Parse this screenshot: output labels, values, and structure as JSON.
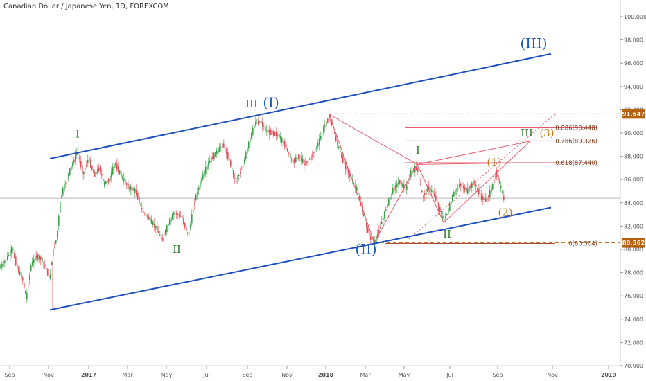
{
  "header": {
    "title": "Canadian Dollar / Japanese Yen, 1D, FOREXCOM"
  },
  "chart_data": {
    "type": "candlestick",
    "x_tick_labels": [
      "Sep",
      "Nov",
      "2017",
      "Mar",
      "May",
      "Jul",
      "Sep",
      "Nov",
      "2018",
      "Mar",
      "May",
      "Jul",
      "Sep",
      "Nov",
      "2019"
    ],
    "y_tick_labels": [
      "70.000",
      "72.000",
      "74.000",
      "76.000",
      "78.000",
      "80.000",
      "82.000",
      "84.000",
      "86.000",
      "88.000",
      "90.000",
      "92.000",
      "94.000",
      "96.000",
      "98.000",
      "100.000"
    ],
    "ylim": [
      70,
      101
    ],
    "xlim": [
      0,
      895
    ],
    "price_path": [
      [
        0,
        78.4
      ],
      [
        10,
        79.2
      ],
      [
        18,
        80.1
      ],
      [
        25,
        78.4
      ],
      [
        33,
        77.4
      ],
      [
        38,
        75.8
      ],
      [
        45,
        78.6
      ],
      [
        52,
        79.4
      ],
      [
        60,
        79.2
      ],
      [
        66,
        78.4
      ],
      [
        72,
        77.4
      ],
      [
        76,
        79.6
      ],
      [
        82,
        81.0
      ],
      [
        88,
        84.5
      ],
      [
        96,
        86.0
      ],
      [
        104,
        87.2
      ],
      [
        112,
        88.4
      ],
      [
        120,
        86.5
      ],
      [
        128,
        87.8
      ],
      [
        136,
        86.4
      ],
      [
        144,
        87.0
      ],
      [
        150,
        85.6
      ],
      [
        158,
        86.0
      ],
      [
        166,
        87.4
      ],
      [
        176,
        86.2
      ],
      [
        186,
        85.3
      ],
      [
        196,
        85.0
      ],
      [
        206,
        83.3
      ],
      [
        216,
        82.6
      ],
      [
        226,
        81.8
      ],
      [
        234,
        80.8
      ],
      [
        244,
        82.3
      ],
      [
        252,
        83.2
      ],
      [
        262,
        82.8
      ],
      [
        272,
        81.2
      ],
      [
        282,
        84.4
      ],
      [
        292,
        86.2
      ],
      [
        302,
        87.5
      ],
      [
        312,
        88.3
      ],
      [
        322,
        89.0
      ],
      [
        332,
        87.5
      ],
      [
        340,
        85.8
      ],
      [
        350,
        87.0
      ],
      [
        360,
        89.3
      ],
      [
        368,
        90.8
      ],
      [
        376,
        91.0
      ],
      [
        384,
        90.2
      ],
      [
        394,
        90.0
      ],
      [
        402,
        89.8
      ],
      [
        412,
        88.9
      ],
      [
        422,
        87.5
      ],
      [
        432,
        88.0
      ],
      [
        440,
        87.3
      ],
      [
        450,
        88.0
      ],
      [
        460,
        89.2
      ],
      [
        468,
        90.5
      ],
      [
        476,
        91.5
      ],
      [
        486,
        89.2
      ],
      [
        496,
        87.5
      ],
      [
        506,
        86.2
      ],
      [
        516,
        85.0
      ],
      [
        526,
        82.6
      ],
      [
        534,
        81.0
      ],
      [
        541,
        80.6
      ],
      [
        548,
        81.8
      ],
      [
        556,
        83.3
      ],
      [
        566,
        85.0
      ],
      [
        576,
        85.8
      ],
      [
        586,
        85.2
      ],
      [
        594,
        86.8
      ],
      [
        602,
        87.0
      ],
      [
        610,
        84.5
      ],
      [
        618,
        85.3
      ],
      [
        626,
        84.8
      ],
      [
        634,
        83.5
      ],
      [
        640,
        82.5
      ],
      [
        646,
        83.2
      ],
      [
        654,
        84.7
      ],
      [
        664,
        85.6
      ],
      [
        674,
        85.0
      ],
      [
        684,
        85.8
      ],
      [
        694,
        84.5
      ],
      [
        702,
        84.2
      ],
      [
        710,
        85.3
      ],
      [
        716,
        86.6
      ],
      [
        722,
        85.5
      ],
      [
        727,
        84.3
      ]
    ],
    "last_price": 84.4,
    "price_labels": [
      {
        "text": "91.647",
        "value": 91.647,
        "color": "#b8600e"
      },
      {
        "text": "80.562",
        "value": 80.562,
        "color": "#b8600e"
      }
    ],
    "fib_levels": [
      {
        "label": "0.886(90.448)",
        "value": 90.448
      },
      {
        "label": "0.786(89.326)",
        "value": 89.326
      },
      {
        "label": "0.618(87.440)",
        "value": 87.44
      },
      {
        "label": "0(80.504)",
        "value": 80.504
      }
    ],
    "channel_lines": [
      {
        "from": [
          72,
          87.8
        ],
        "to": [
          795,
          96.8
        ]
      },
      {
        "from": [
          72,
          74.8
        ],
        "to": [
          795,
          83.6
        ]
      }
    ],
    "wave_labels": [
      {
        "text": "I",
        "x": 112,
        "y": 89.6,
        "color": "#2e7d32",
        "size": 15
      },
      {
        "text": "II",
        "x": 255,
        "y": 79.7,
        "color": "#2e7d32",
        "size": 15
      },
      {
        "text": "III",
        "x": 363,
        "y": 92.2,
        "color": "#2e7d32",
        "size": 15
      },
      {
        "text": "(I)",
        "x": 391,
        "y": 92.2,
        "color": "#1f5bbf",
        "size": 20
      },
      {
        "text": "(II)",
        "x": 528,
        "y": 79.6,
        "color": "#1f5bbf",
        "size": 20
      },
      {
        "text": "(III)",
        "x": 770,
        "y": 97.3,
        "color": "#1f5bbf",
        "size": 20
      },
      {
        "text": "I",
        "x": 603,
        "y": 88.2,
        "color": "#2e7d32",
        "size": 15
      },
      {
        "text": "II",
        "x": 645,
        "y": 81.0,
        "color": "#2e7d32",
        "size": 15
      },
      {
        "text": "III",
        "x": 760,
        "y": 89.7,
        "color": "#2e7d32",
        "size": 15
      },
      {
        "text": "(3)",
        "x": 789,
        "y": 89.7,
        "color": "#c07a1c",
        "size": 15
      },
      {
        "text": "(1)",
        "x": 713,
        "y": 87.2,
        "color": "#c07a1c",
        "size": 15
      },
      {
        "text": "(2)",
        "x": 729,
        "y": 82.9,
        "color": "#c07a1c",
        "size": 15
      }
    ]
  }
}
